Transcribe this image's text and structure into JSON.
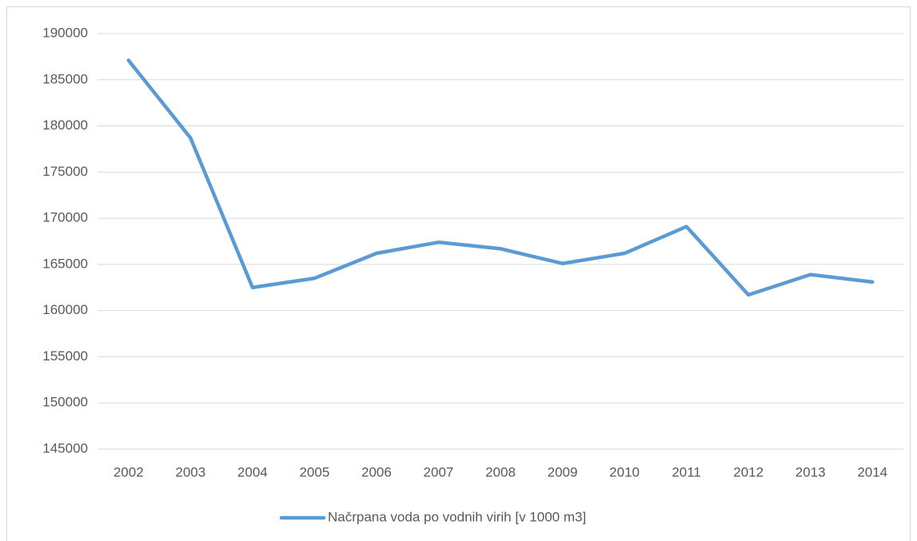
{
  "chart_data": {
    "type": "line",
    "categories": [
      "2002",
      "2003",
      "2004",
      "2005",
      "2006",
      "2007",
      "2008",
      "2009",
      "2010",
      "2011",
      "2012",
      "2013",
      "2014"
    ],
    "series": [
      {
        "name": "Načrpana voda po vodnih virih [v 1000 m3]",
        "color": "#5b9bd5",
        "values": [
          187100,
          178700,
          162500,
          163500,
          166200,
          167400,
          166700,
          165100,
          166200,
          169100,
          161700,
          163900,
          163100
        ]
      }
    ],
    "ylim": [
      145000,
      190000
    ],
    "yticks": [
      145000,
      150000,
      155000,
      160000,
      165000,
      170000,
      175000,
      180000,
      185000,
      190000
    ],
    "grid": true,
    "legend": "bottom"
  }
}
